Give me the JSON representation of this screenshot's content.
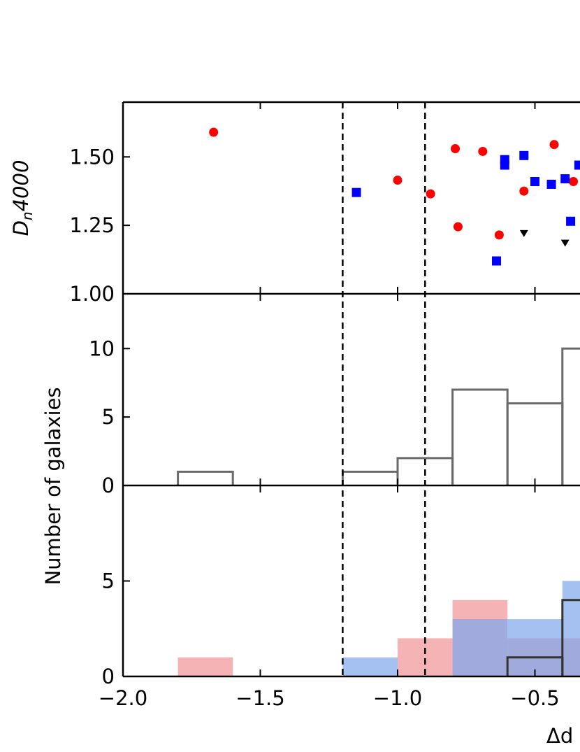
{
  "chart_data": [
    {
      "panel": "top",
      "type": "scatter",
      "xlabel": "Δd",
      "ylabel_main": "D",
      "ylabel_sub": "n",
      "ylabel_tail": "4000",
      "xlim": [
        -2.0,
        0.2
      ],
      "ylim": [
        1.0,
        1.7
      ],
      "yticks": [
        1.0,
        1.25,
        1.5
      ],
      "ytick_labels": [
        "1.00",
        "1.25",
        "1.50"
      ],
      "xticks": [
        -2.0,
        -1.5,
        -1.0,
        -0.5
      ],
      "vlines": [
        -1.2,
        -0.9
      ],
      "series": [
        {
          "marker": "circle",
          "color": "#ff0000",
          "points": [
            [
              -1.67,
              1.59
            ],
            [
              -1.0,
              1.415
            ],
            [
              -0.88,
              1.365
            ],
            [
              -0.79,
              1.53
            ],
            [
              -0.78,
              1.245
            ],
            [
              -0.69,
              1.52
            ],
            [
              -0.63,
              1.215
            ],
            [
              -0.54,
              1.375
            ],
            [
              -0.43,
              1.545
            ],
            [
              -0.36,
              1.41
            ]
          ]
        },
        {
          "marker": "square",
          "color": "#0000ff",
          "points": [
            [
              -1.15,
              1.37
            ],
            [
              -0.64,
              1.12
            ],
            [
              -0.61,
              1.49
            ],
            [
              -0.61,
              1.47
            ],
            [
              -0.54,
              1.505
            ],
            [
              -0.5,
              1.41
            ],
            [
              -0.44,
              1.4
            ],
            [
              -0.39,
              1.42
            ],
            [
              -0.37,
              1.265
            ],
            [
              -0.34,
              1.47
            ]
          ]
        },
        {
          "marker": "triangle-down",
          "color": "#000000",
          "points": [
            [
              -0.54,
              1.22
            ],
            [
              -0.39,
              1.185
            ]
          ]
        }
      ]
    },
    {
      "panel": "middle",
      "type": "histogram",
      "ylabel": "Number of galaxies",
      "ylim": [
        0,
        14
      ],
      "yticks": [
        0,
        5,
        10
      ],
      "ytick_labels": [
        "0",
        "5",
        "10"
      ],
      "color": "#6a6a6a",
      "bins": [
        [
          -1.8,
          -1.6,
          1
        ],
        [
          -1.2,
          -1.0,
          1
        ],
        [
          -1.0,
          -0.8,
          2
        ],
        [
          -0.8,
          -0.6,
          7
        ],
        [
          -0.6,
          -0.4,
          6
        ],
        [
          -0.4,
          -0.2,
          10
        ]
      ]
    },
    {
      "panel": "bottom",
      "type": "histogram",
      "ylim": [
        0,
        10
      ],
      "yticks": [
        0,
        5
      ],
      "ytick_labels": [
        "0",
        "5"
      ],
      "xticks": [
        -2.0,
        -1.5,
        -1.0,
        -0.5
      ],
      "xtick_labels": [
        "−2.0",
        "−1.5",
        "−1.0",
        "−0.5"
      ],
      "series": [
        {
          "color": "#f2a0a3",
          "opacity": 0.8,
          "bins": [
            [
              -1.8,
              -1.6,
              1
            ],
            [
              -1.0,
              -0.8,
              2
            ],
            [
              -0.8,
              -0.6,
              4
            ],
            [
              -0.6,
              -0.4,
              2
            ],
            [
              -0.4,
              -0.2,
              2
            ]
          ]
        },
        {
          "color": "#7ea6ec",
          "opacity": 0.7,
          "bins": [
            [
              -1.2,
              -1.0,
              1
            ],
            [
              -0.8,
              -0.6,
              3
            ],
            [
              -0.6,
              -0.4,
              3
            ],
            [
              -0.4,
              -0.2,
              5
            ]
          ]
        },
        {
          "color": "#333333",
          "type": "step",
          "bins": [
            [
              -0.6,
              -0.4,
              1
            ],
            [
              -0.4,
              -0.2,
              4
            ]
          ]
        }
      ]
    }
  ]
}
